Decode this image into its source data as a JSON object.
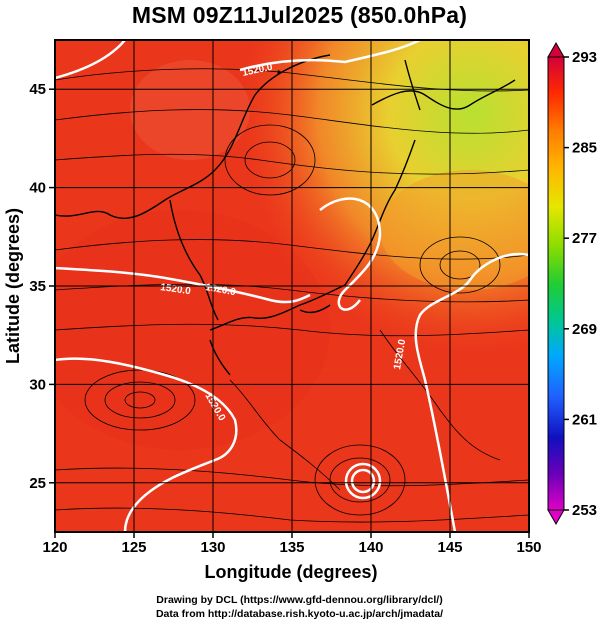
{
  "title": "MSM 09Z11Jul2025 (850.0hPa)",
  "x_axis": {
    "label": "Longitude (degrees)",
    "ticks": [
      "120",
      "125",
      "130",
      "135",
      "140",
      "145",
      "150"
    ]
  },
  "y_axis": {
    "label": "Latitude  (degrees)",
    "ticks": [
      "25",
      "30",
      "35",
      "40",
      "45"
    ]
  },
  "colorbar": {
    "ticks": [
      "293",
      "285",
      "277",
      "269",
      "261",
      "253"
    ],
    "colors": [
      "#d4003a",
      "#ff2a00",
      "#ff7a00",
      "#ffb300",
      "#e6e600",
      "#88dd00",
      "#22cc33",
      "#00c890",
      "#00a8ff",
      "#2060ff",
      "#1010c0",
      "#6a00b8",
      "#e000c8"
    ]
  },
  "contours": {
    "label": "1520.0",
    "labels": [
      "1520.0",
      "1520.0",
      "1520.0",
      "1520.0",
      "1520.0"
    ],
    "color": "#ffffff"
  },
  "colors": {
    "background": "#ffffff",
    "field_main": "#f03c1e",
    "field_warm": "#e8321c",
    "field_cool": "#f0a020",
    "field_cold": "#b8e030",
    "streamline": "#000000"
  },
  "credits": {
    "line1": "Drawing by DCL (https://www.gfd-dennou.org/library/dcl/)",
    "line2": "Data from http://database.rish.kyoto-u.ac.jp/arch/jmadata/"
  }
}
